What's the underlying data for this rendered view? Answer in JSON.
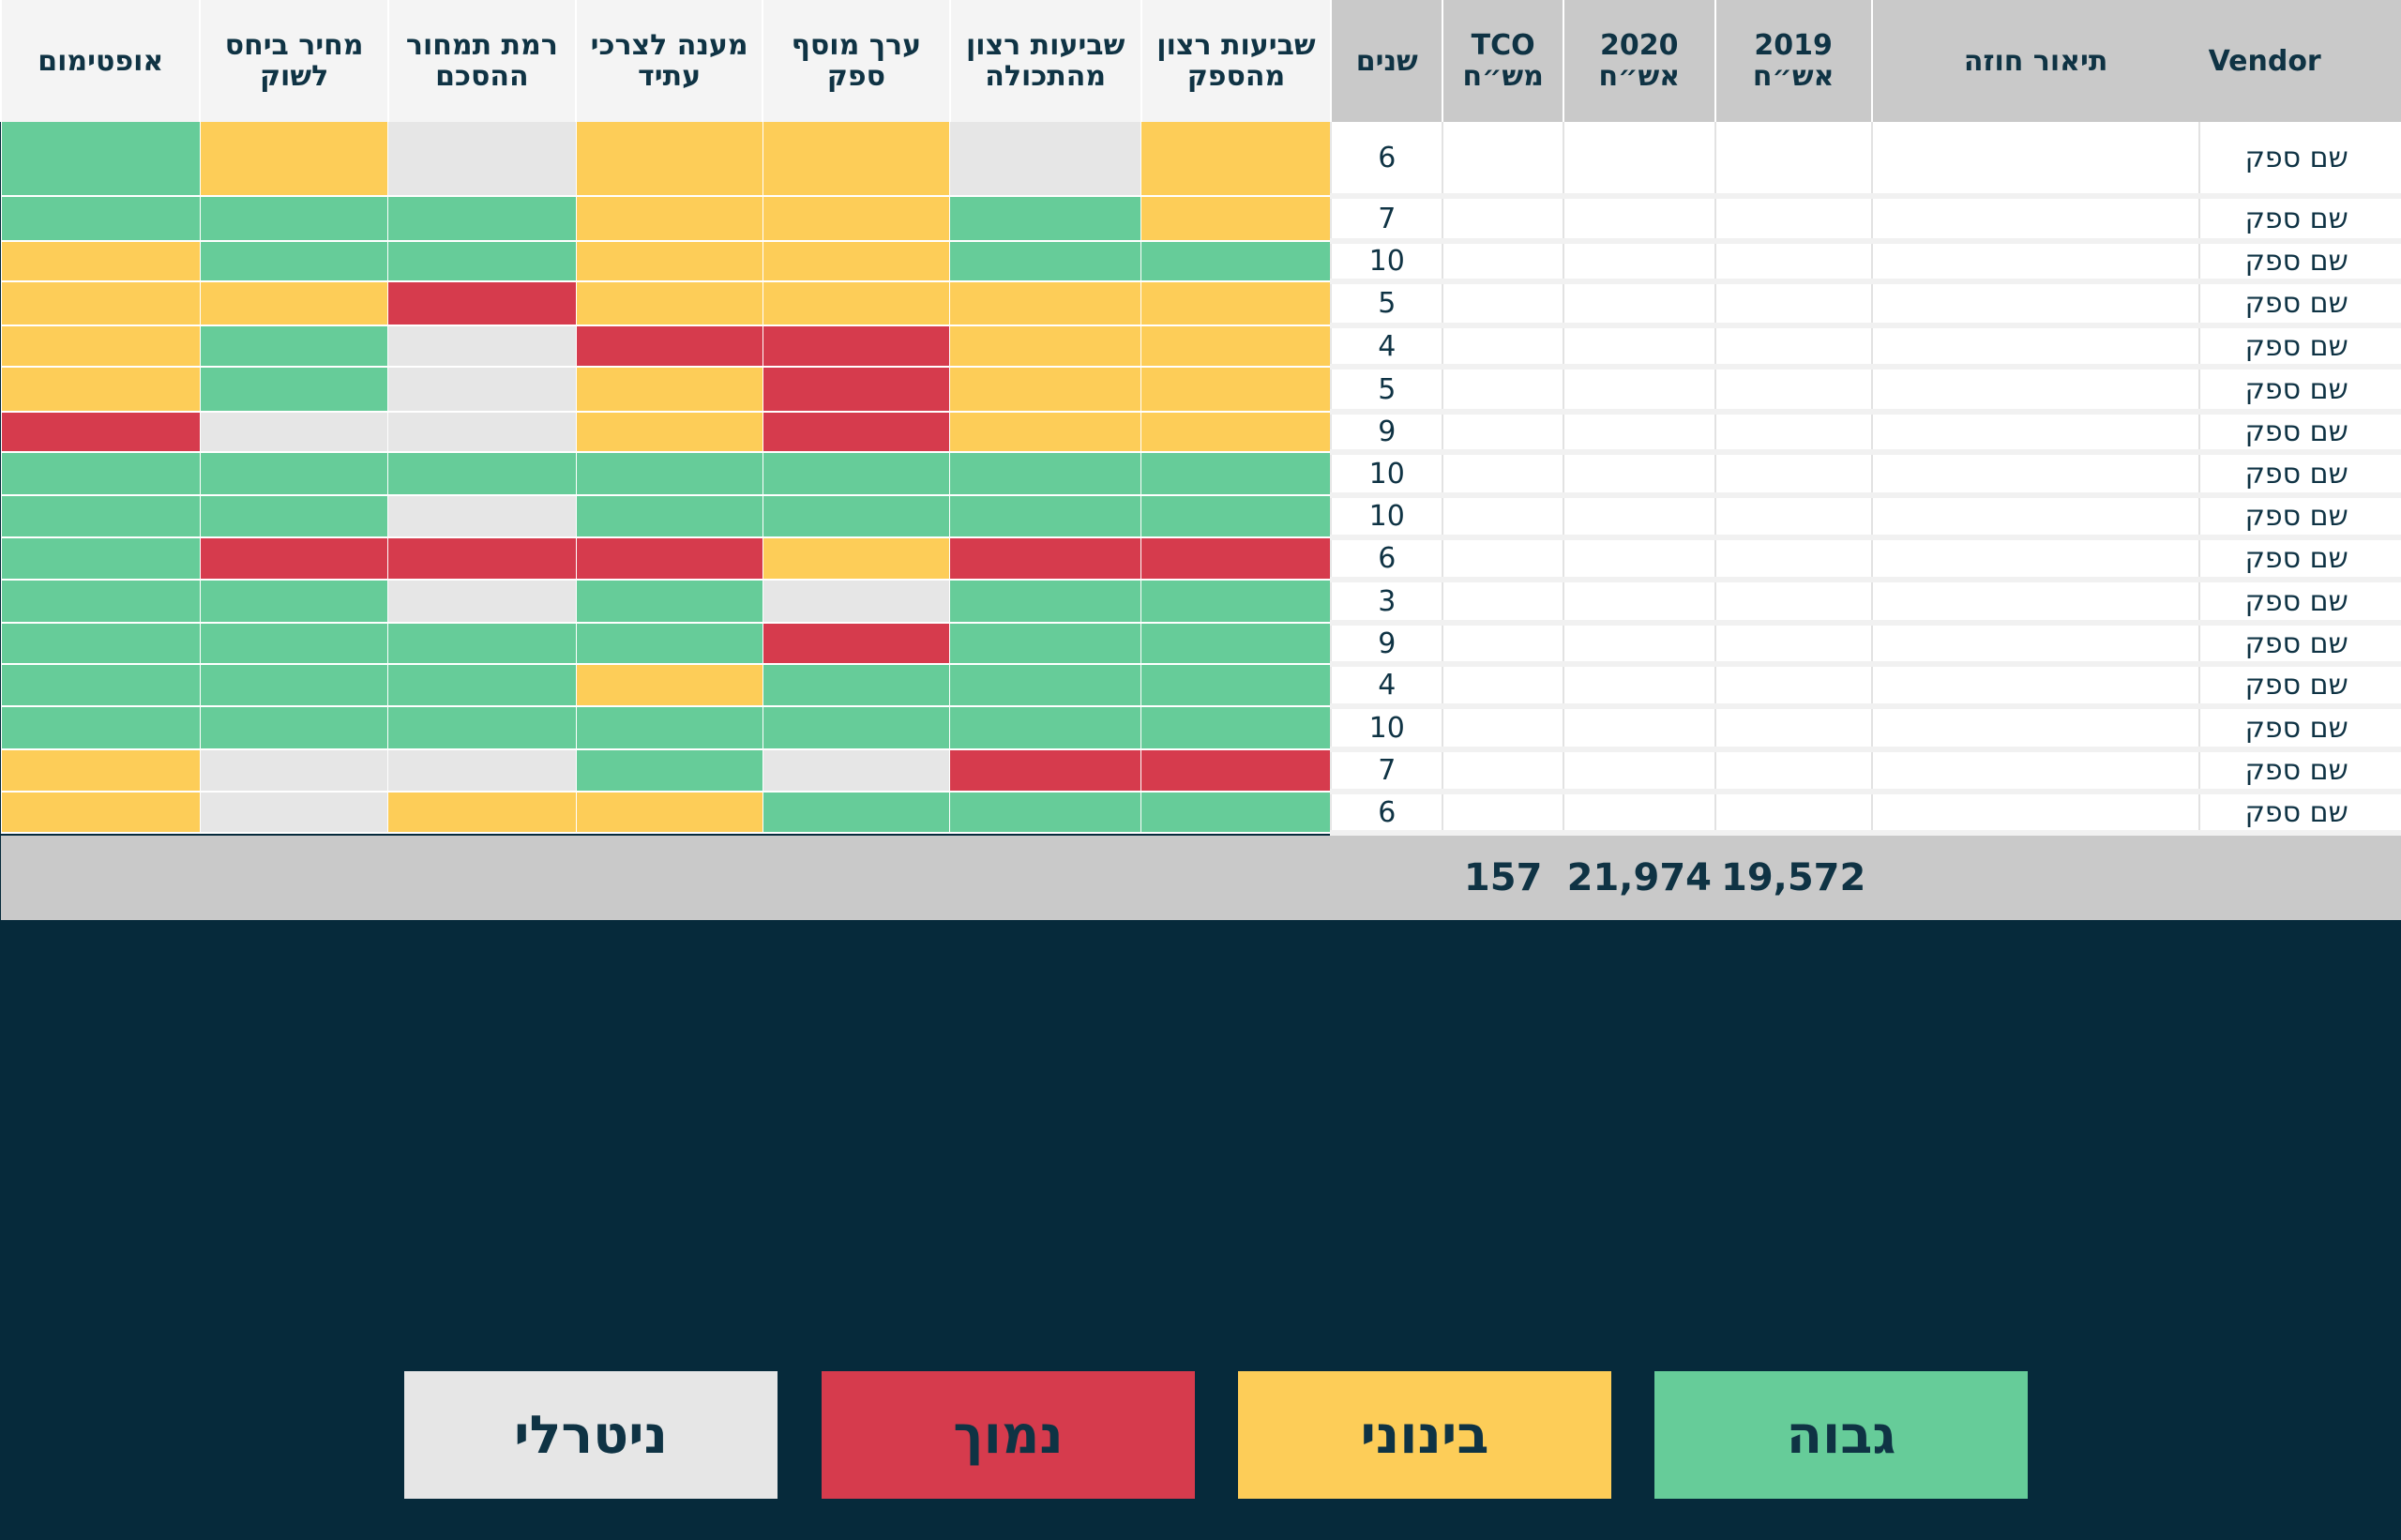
{
  "header": {
    "vendor": "Vendor",
    "contract": "תיאור חוזה",
    "y2019": [
      "2019",
      "אש״ח"
    ],
    "y2020": [
      "2020",
      "אש״ח"
    ],
    "tco": [
      "TCO",
      "מש״ח"
    ],
    "years": "שנים",
    "criteria": [
      [
        "שביעות רצון",
        "מהספק"
      ],
      [
        "שביעות רצון",
        "מהתכולה"
      ],
      [
        "ערך מוסף",
        "ספק"
      ],
      [
        "מענה לצרכי",
        "עתיד"
      ],
      [
        "רמת תמחור",
        "ההסכם"
      ],
      [
        "מחיר ביחס",
        "לשוק"
      ],
      [
        "אופטימום"
      ]
    ]
  },
  "rows": [
    {
      "vendor": "שם ספק",
      "years": "6",
      "scores": [
        "mid",
        "neutral",
        "mid",
        "mid",
        "neutral",
        "mid",
        "high"
      ]
    },
    {
      "vendor": "שם ספק",
      "years": "7",
      "scores": [
        "mid",
        "high",
        "mid",
        "mid",
        "high",
        "high",
        "high"
      ]
    },
    {
      "vendor": "שם ספק",
      "years": "10",
      "scores": [
        "high",
        "high",
        "mid",
        "mid",
        "high",
        "high",
        "mid"
      ]
    },
    {
      "vendor": "שם ספק",
      "years": "5",
      "scores": [
        "mid",
        "mid",
        "mid",
        "mid",
        "low",
        "mid",
        "mid"
      ]
    },
    {
      "vendor": "שם ספק",
      "years": "4",
      "scores": [
        "mid",
        "mid",
        "low",
        "low",
        "neutral",
        "high",
        "mid"
      ]
    },
    {
      "vendor": "שם ספק",
      "years": "5",
      "scores": [
        "mid",
        "mid",
        "low",
        "mid",
        "neutral",
        "high",
        "mid"
      ]
    },
    {
      "vendor": "שם ספק",
      "years": "9",
      "scores": [
        "mid",
        "mid",
        "low",
        "mid",
        "neutral",
        "neutral",
        "low"
      ]
    },
    {
      "vendor": "שם ספק",
      "years": "10",
      "scores": [
        "high",
        "high",
        "high",
        "high",
        "high",
        "high",
        "high"
      ]
    },
    {
      "vendor": "שם ספק",
      "years": "10",
      "scores": [
        "high",
        "high",
        "high",
        "high",
        "neutral",
        "high",
        "high"
      ]
    },
    {
      "vendor": "שם ספק",
      "years": "6",
      "scores": [
        "low",
        "low",
        "mid",
        "low",
        "low",
        "low",
        "high"
      ]
    },
    {
      "vendor": "שם ספק",
      "years": "3",
      "scores": [
        "high",
        "high",
        "neutral",
        "high",
        "neutral",
        "high",
        "high"
      ]
    },
    {
      "vendor": "שם ספק",
      "years": "9",
      "scores": [
        "high",
        "high",
        "low",
        "high",
        "high",
        "high",
        "high"
      ]
    },
    {
      "vendor": "שם ספק",
      "years": "4",
      "scores": [
        "high",
        "high",
        "high",
        "mid",
        "high",
        "high",
        "high"
      ]
    },
    {
      "vendor": "שם ספק",
      "years": "10",
      "scores": [
        "high",
        "high",
        "high",
        "high",
        "high",
        "high",
        "high"
      ]
    },
    {
      "vendor": "שם ספק",
      "years": "7",
      "scores": [
        "low",
        "low",
        "neutral",
        "high",
        "neutral",
        "neutral",
        "mid"
      ]
    },
    {
      "vendor": "שם ספק",
      "years": "6",
      "scores": [
        "high",
        "high",
        "high",
        "mid",
        "mid",
        "neutral",
        "mid"
      ]
    }
  ],
  "totals": {
    "y2019": "19,572",
    "y2020": "21,974",
    "tco": "157"
  },
  "legend": [
    {
      "key": "high",
      "label": "גבוה",
      "color": "#66cc99"
    },
    {
      "key": "mid",
      "label": "בינוני",
      "color": "#fdcd58"
    },
    {
      "key": "low",
      "label": "נמוך",
      "color": "#d63b4d"
    },
    {
      "key": "neutral",
      "label": "ניטרלי",
      "color": "#e6e6e6"
    }
  ]
}
